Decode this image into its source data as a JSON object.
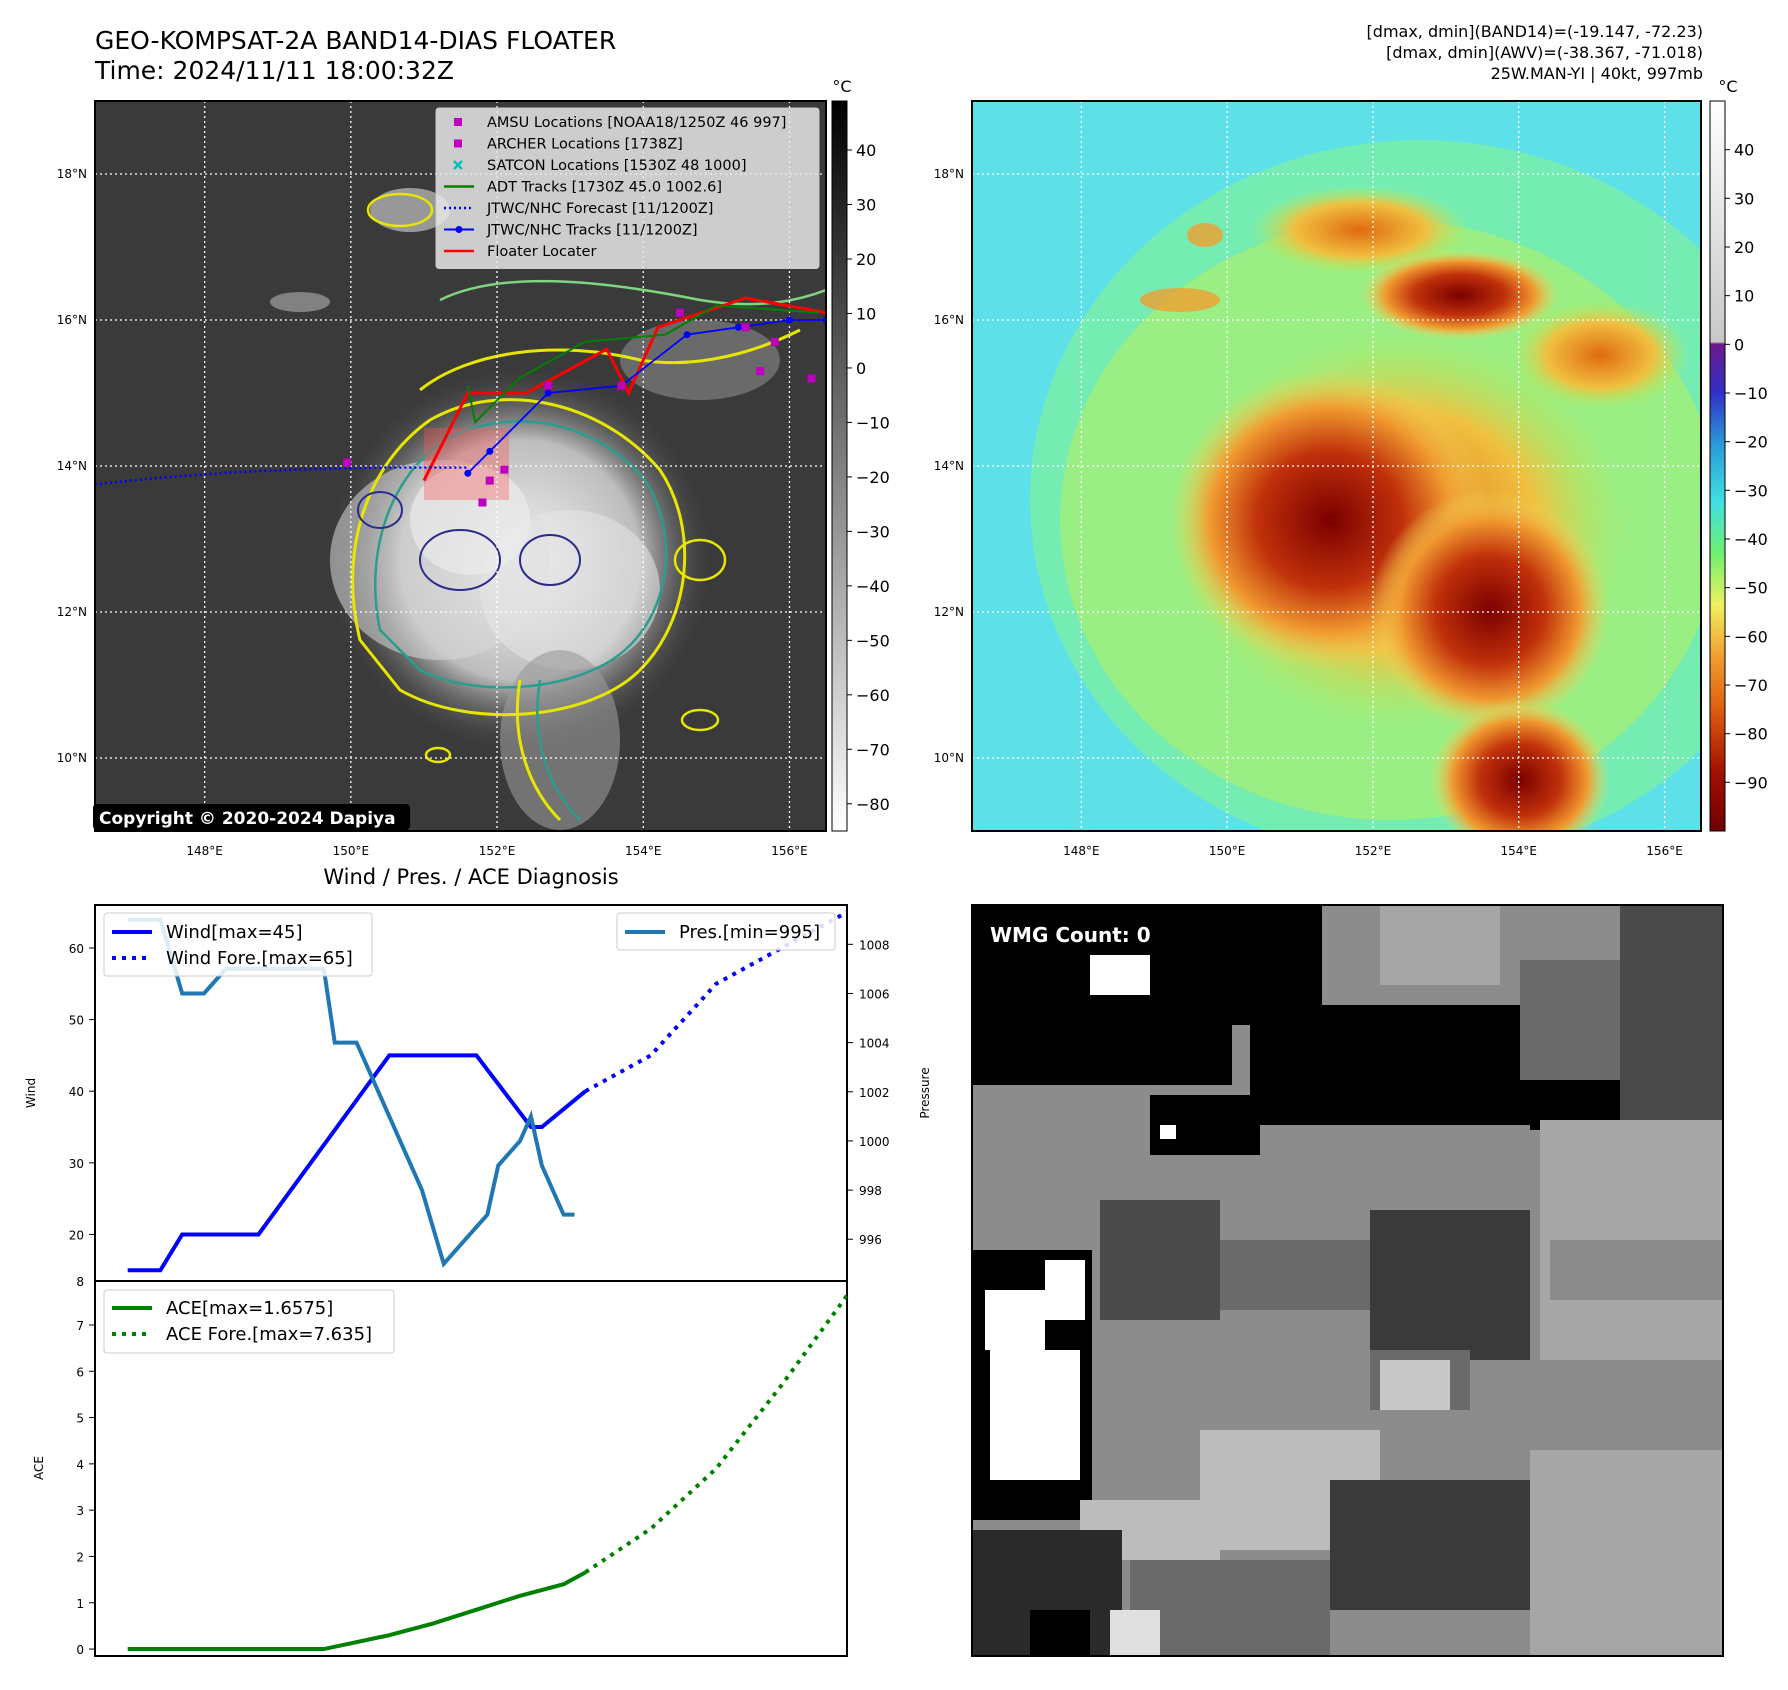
{
  "header": {
    "title_line1": "GEO-KOMPSAT-2A BAND14-DIAS FLOATER",
    "title_line2": "Time: 2024/11/11 18:00:32Z",
    "info": [
      "[dmax, dmin](BAND14)=(-19.147, -72.23)",
      "[dmax, dmin](AWV)=(-38.367, -71.018)",
      "25W.MAN-YI | 40kt, 997mb"
    ]
  },
  "map": {
    "lat_labels": [
      "18°N",
      "16°N",
      "14°N",
      "12°N",
      "10°N"
    ],
    "lon_labels": [
      "148°E",
      "150°E",
      "152°E",
      "154°E",
      "156°E"
    ],
    "lat_values": [
      18,
      16,
      14,
      12,
      10
    ],
    "lon_values": [
      148,
      150,
      152,
      154,
      156
    ],
    "lat_range": [
      9.0,
      19.0
    ],
    "lon_range": [
      146.5,
      156.5
    ],
    "copyright": "Copyright © 2020-2024 Dapiya",
    "legend": [
      {
        "label": "AMSU Locations [NOAA18/1250Z 46 997]",
        "kind": "square",
        "color": "#bf00bf"
      },
      {
        "label": "ARCHER Locations [1738Z]",
        "kind": "square",
        "color": "#bf00bf"
      },
      {
        "label": "SATCON Locations [1530Z 48 1000]",
        "kind": "x",
        "color": "#00bfbf"
      },
      {
        "label": "ADT Tracks [1730Z 45.0 1002.6]",
        "kind": "line",
        "color": "#008000"
      },
      {
        "label": "JTWC/NHC Forecast [11/1200Z]",
        "kind": "dotted",
        "color": "#0000ff"
      },
      {
        "label": "JTWC/NHC Tracks [11/1200Z]",
        "kind": "line-dot",
        "color": "#0000ff"
      },
      {
        "label": "Floater Locater",
        "kind": "line",
        "color": "#ff0000"
      }
    ],
    "jtwc_track": [
      [
        151.6,
        13.9
      ],
      [
        151.9,
        14.2
      ],
      [
        152.7,
        15.0
      ],
      [
        153.7,
        15.1
      ],
      [
        154.6,
        15.8
      ],
      [
        155.3,
        15.9
      ],
      [
        156.0,
        16.0
      ],
      [
        156.5,
        16.0
      ]
    ],
    "jtwc_forecast": [
      [
        146.5,
        13.75
      ],
      [
        147.5,
        13.85
      ],
      [
        148.5,
        13.92
      ],
      [
        149.5,
        13.96
      ],
      [
        150.5,
        13.98
      ],
      [
        151.6,
        13.98
      ]
    ],
    "adt_track": [
      [
        151.6,
        15.1
      ],
      [
        151.7,
        14.6
      ],
      [
        152.3,
        15.2
      ],
      [
        153.2,
        15.7
      ],
      [
        154.3,
        15.8
      ],
      [
        155.0,
        16.2
      ],
      [
        156.4,
        16.1
      ]
    ],
    "floater_track": [
      [
        151.0,
        13.8
      ],
      [
        151.6,
        15.0
      ],
      [
        152.4,
        15.0
      ],
      [
        153.5,
        15.6
      ],
      [
        153.8,
        15.0
      ],
      [
        154.2,
        15.9
      ],
      [
        155.4,
        16.3
      ],
      [
        156.5,
        16.1
      ]
    ],
    "amsu_points": [
      [
        151.9,
        13.8
      ],
      [
        152.1,
        13.95
      ],
      [
        151.8,
        13.5
      ],
      [
        152.7,
        15.1
      ],
      [
        153.7,
        15.1
      ],
      [
        154.5,
        16.1
      ],
      [
        155.4,
        15.9
      ],
      [
        155.6,
        15.3
      ],
      [
        155.8,
        15.7
      ],
      [
        156.3,
        15.2
      ],
      [
        149.95,
        14.05
      ]
    ],
    "colorbar_left": {
      "unit": "°C",
      "ticks": [
        40,
        30,
        20,
        10,
        0,
        -10,
        -20,
        -30,
        -40,
        -50,
        -60,
        -70,
        -80
      ],
      "range": [
        -85,
        49
      ]
    },
    "colorbar_right": {
      "unit": "°C",
      "ticks": [
        40,
        30,
        20,
        10,
        0,
        -10,
        -20,
        -30,
        -40,
        -50,
        -60,
        -70,
        -80,
        -90
      ],
      "range": [
        -100,
        50
      ]
    }
  },
  "chart_data": [
    {
      "type": "line",
      "title": "Wind / Pres. / ACE Diagnosis",
      "ylabel": "Wind",
      "ylabel2": "Pressure",
      "ylim": [
        13.5,
        66
      ],
      "ylim2": [
        994.3,
        1009.6
      ],
      "yticks": [
        20,
        30,
        40,
        50,
        60
      ],
      "yticks2": [
        996,
        998,
        1000,
        1002,
        1004,
        1006,
        1008
      ],
      "xlim": [
        -3,
        66
      ],
      "series": [
        {
          "name": "Wind[max=45]",
          "style": "solid",
          "color": "#0000ff",
          "axis": "left",
          "x": [
            0,
            3,
            5,
            12,
            24,
            30,
            32,
            37,
            38,
            42
          ],
          "values": [
            15,
            15,
            20,
            20,
            45,
            45,
            45,
            35,
            35,
            40
          ]
        },
        {
          "name": "Wind Fore.[max=65]",
          "style": "dotted",
          "color": "#0000ff",
          "axis": "left",
          "x": [
            42,
            48,
            54,
            60,
            66
          ],
          "values": [
            40,
            45,
            55,
            60,
            65
          ]
        },
        {
          "name": "Pres.[min=995]",
          "style": "solid",
          "color": "#1f77b4",
          "axis": "right",
          "x": [
            0,
            3,
            5,
            7,
            9,
            11,
            14,
            16,
            18,
            19,
            21,
            25,
            27,
            29,
            31,
            33,
            34,
            36,
            37,
            38,
            40,
            41
          ],
          "values": [
            1009,
            1009,
            1006,
            1006,
            1007,
            1007,
            1007,
            1007,
            1007,
            1004,
            1004,
            1000,
            998,
            995,
            996,
            997,
            999,
            1000,
            1001,
            999,
            997,
            997
          ]
        }
      ]
    },
    {
      "type": "line",
      "ylabel": "ACE",
      "ylim": [
        -0.15,
        7.95
      ],
      "yticks": [
        0,
        1,
        2,
        3,
        4,
        5,
        6,
        7
      ],
      "yticks_top_label": "8",
      "xlim": [
        -3,
        66
      ],
      "series": [
        {
          "name": "ACE[max=1.6575]",
          "style": "solid",
          "color": "#008000",
          "x": [
            0,
            10,
            18,
            20,
            24,
            28,
            32,
            36,
            40,
            42
          ],
          "values": [
            0,
            0,
            0,
            0.1,
            0.3,
            0.55,
            0.85,
            1.15,
            1.4,
            1.6575
          ]
        },
        {
          "name": "ACE Fore.[max=7.635]",
          "style": "dotted",
          "color": "#008000",
          "x": [
            42,
            48,
            54,
            60,
            66
          ],
          "values": [
            1.6575,
            2.6,
            3.9,
            5.7,
            7.635
          ]
        }
      ]
    }
  ],
  "wmg": {
    "label": "WMG Count: 0"
  }
}
